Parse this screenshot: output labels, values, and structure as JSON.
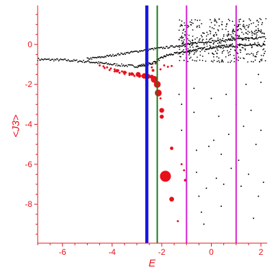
{
  "chart_data": {
    "type": "scatter",
    "title": "",
    "xlabel": "E",
    "ylabel": "<J3>",
    "xlim": [
      -7,
      2.25
    ],
    "ylim": [
      -9.95,
      1.95
    ],
    "grid": false,
    "legend": "none",
    "x_ticks": [
      -6,
      -4,
      -2,
      0,
      2
    ],
    "y_ticks": [
      0,
      -2,
      -4,
      -6,
      -8
    ],
    "colors": {
      "axis": "#e8101a",
      "black_points": "#000000",
      "red_points": "#e8101a",
      "line_blue": "#1414e0",
      "line_green": "#167a16",
      "line_magenta": "#d21ed2"
    },
    "vertical_lines": [
      {
        "x": -2.6,
        "color": "#1414e0",
        "width": 4.5
      },
      {
        "x": -2.18,
        "color": "#167a16",
        "width": 2
      },
      {
        "x": -1.0,
        "color": "#d21ed2",
        "width": 2
      },
      {
        "x": 1.0,
        "color": "#d21ed2",
        "width": 2
      }
    ],
    "series": [
      {
        "color": "#000000",
        "band_points": [
          [
            -7.0,
            -0.75
          ],
          [
            -6.0,
            -0.78
          ],
          [
            -5.0,
            -0.86
          ],
          [
            -4.0,
            -1.0
          ],
          [
            -3.0,
            -1.1
          ],
          [
            -2.4,
            -0.95
          ],
          [
            -1.8,
            -0.55
          ],
          [
            -1.0,
            -0.35
          ],
          [
            -0.3,
            -0.2
          ],
          [
            0.5,
            -0.1
          ],
          [
            1.2,
            -0.05
          ],
          [
            2.2,
            -0.05
          ]
        ],
        "upper_branch": [
          [
            -5.0,
            -0.72
          ],
          [
            -4.5,
            -0.65
          ],
          [
            -4.0,
            -0.55
          ],
          [
            -3.5,
            -0.45
          ],
          [
            -3.0,
            -0.35
          ],
          [
            -2.5,
            -0.25
          ],
          [
            -2.0,
            -0.18
          ],
          [
            -1.5,
            -0.1
          ],
          [
            -1.0,
            0.0
          ],
          [
            -0.5,
            0.1
          ],
          [
            0.0,
            0.15
          ],
          [
            0.5,
            0.2
          ],
          [
            1.0,
            0.25
          ],
          [
            1.5,
            0.3
          ],
          [
            2.2,
            0.35
          ]
        ],
        "cloud_region": {
          "x": [
            -1.3,
            2.2
          ],
          "y": [
            -0.9,
            1.3
          ]
        },
        "sparse_points": [
          [
            -1.3,
            -2.5
          ],
          [
            -1.2,
            -3.0
          ],
          [
            -1.2,
            -4.3
          ],
          [
            -0.7,
            -2.2
          ],
          [
            -0.7,
            -3.4
          ],
          [
            -0.6,
            -5.3
          ],
          [
            -0.6,
            -6.4
          ],
          [
            -0.5,
            -7.6
          ],
          [
            -0.4,
            -8.4
          ],
          [
            -0.3,
            -9.0
          ],
          [
            -0.2,
            -7.2
          ],
          [
            -0.1,
            -5.1
          ],
          [
            0.0,
            -2.7
          ],
          [
            0.1,
            -4.8
          ],
          [
            0.2,
            -6.7
          ],
          [
            0.3,
            -3.6
          ],
          [
            0.4,
            -5.5
          ],
          [
            0.4,
            -8.1
          ],
          [
            0.5,
            -7.0
          ],
          [
            0.6,
            -2.5
          ],
          [
            0.7,
            -4.5
          ],
          [
            0.8,
            -6.2
          ],
          [
            1.0,
            -3.0
          ],
          [
            1.1,
            -5.8
          ],
          [
            1.2,
            -7.1
          ],
          [
            1.3,
            -4.1
          ],
          [
            1.4,
            -2.0
          ],
          [
            1.5,
            -6.5
          ],
          [
            1.6,
            -3.3
          ],
          [
            1.7,
            -8.7
          ],
          [
            1.8,
            -5.0
          ],
          [
            1.9,
            -7.6
          ],
          [
            2.0,
            -4.3
          ],
          [
            2.1,
            -6.9
          ],
          [
            2.0,
            -1.9
          ],
          [
            1.9,
            -1.5
          ],
          [
            -1.1,
            -0.8
          ]
        ]
      },
      {
        "color": "#e8101a",
        "points": [
          [
            -4.5,
            -1.05,
            1.5
          ],
          [
            -4.35,
            -1.1,
            1.5
          ],
          [
            -4.2,
            -1.15,
            1.5
          ],
          [
            -4.05,
            -1.2,
            1.5
          ],
          [
            -3.9,
            -1.25,
            1.5
          ],
          [
            -3.75,
            -1.3,
            1.5
          ],
          [
            -3.6,
            -1.35,
            1.5
          ],
          [
            -3.45,
            -1.4,
            1.5
          ],
          [
            -3.3,
            -1.45,
            1.5
          ],
          [
            -3.15,
            -1.5,
            1.5
          ],
          [
            -3.0,
            -1.55,
            1.5
          ],
          [
            -2.85,
            -1.58,
            1.5
          ],
          [
            -4.3,
            -1.18,
            1.5
          ],
          [
            -4.1,
            -1.28,
            1.5
          ],
          [
            -3.9,
            -1.35,
            1.5
          ],
          [
            -3.7,
            -1.42,
            1.5
          ],
          [
            -3.5,
            -1.48,
            1.5
          ],
          [
            -3.3,
            -1.53,
            1.5
          ],
          [
            -3.1,
            -1.58,
            1.5
          ],
          [
            -2.9,
            -1.62,
            1.5
          ],
          [
            -3.8,
            -1.32,
            2.5
          ],
          [
            -3.5,
            -1.4,
            2.5
          ],
          [
            -3.2,
            -1.48,
            2.5
          ],
          [
            -2.95,
            -1.5,
            3.5
          ],
          [
            -2.7,
            -1.58,
            4.0
          ],
          [
            -2.55,
            -1.6,
            3.5
          ],
          [
            -2.4,
            -1.62,
            3.0
          ],
          [
            -2.35,
            -1.3,
            2.0
          ],
          [
            -2.4,
            -1.15,
            1.5
          ],
          [
            -2.25,
            -0.95,
            1.5
          ],
          [
            -2.05,
            -1.25,
            1.5
          ],
          [
            -2.3,
            -1.75,
            5.0
          ],
          [
            -2.18,
            -2.0,
            5.0
          ],
          [
            -2.14,
            -2.43,
            5.0
          ],
          [
            -2.05,
            -2.7,
            1.5
          ],
          [
            -2.0,
            -3.3,
            3.5
          ],
          [
            -2.0,
            -3.62,
            3.0
          ],
          [
            -1.6,
            -5.2,
            2.5
          ],
          [
            -1.2,
            -6.0,
            1.5
          ],
          [
            -1.1,
            -6.3,
            1.5
          ],
          [
            -1.85,
            -6.6,
            8.0
          ],
          [
            -1.05,
            -6.8,
            2.0
          ],
          [
            -1.6,
            -7.75,
            3.5
          ],
          [
            -1.35,
            -8.85,
            1.5
          ],
          [
            -1.9,
            -1.05,
            1.5
          ],
          [
            -1.75,
            -1.12,
            1.5
          ],
          [
            -1.6,
            -1.08,
            1.5
          ]
        ]
      }
    ]
  }
}
